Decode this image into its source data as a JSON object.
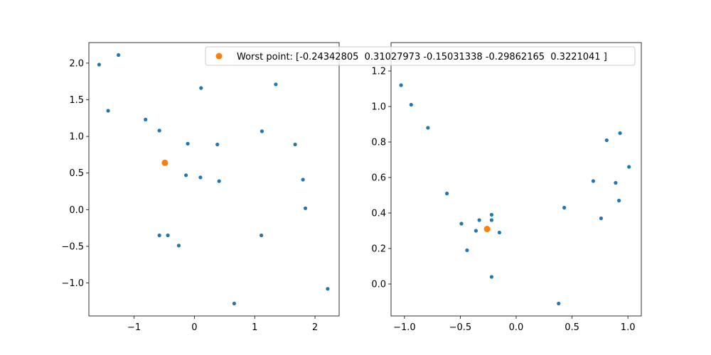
{
  "chart_data": [
    {
      "type": "scatter",
      "xlim": [
        -1.75,
        2.4
      ],
      "ylim": [
        -1.45,
        2.28
      ],
      "xticks": [
        -1,
        0,
        1,
        2
      ],
      "xtick_labels": [
        "−1",
        "0",
        "1",
        "2"
      ],
      "yticks": [
        -1.0,
        -0.5,
        0.0,
        0.5,
        1.0,
        1.5,
        2.0
      ],
      "ytick_labels": [
        "−1.0",
        "−0.5",
        "0.0",
        "0.5",
        "1.0",
        "1.5",
        "2.0"
      ],
      "series": [
        {
          "color": "#1f77b4",
          "marker_size": "small",
          "points": [
            {
              "x": -1.58,
              "y": 1.98
            },
            {
              "x": -1.26,
              "y": 2.11
            },
            {
              "x": -1.43,
              "y": 1.35
            },
            {
              "x": -0.81,
              "y": 1.23
            },
            {
              "x": -0.58,
              "y": 1.08
            },
            {
              "x": -0.11,
              "y": 0.9
            },
            {
              "x": 0.11,
              "y": 1.66
            },
            {
              "x": 0.38,
              "y": 0.89
            },
            {
              "x": 1.35,
              "y": 1.71
            },
            {
              "x": 1.12,
              "y": 1.07
            },
            {
              "x": 1.67,
              "y": 0.89
            },
            {
              "x": -0.14,
              "y": 0.47
            },
            {
              "x": 0.1,
              "y": 0.44
            },
            {
              "x": 0.41,
              "y": 0.39
            },
            {
              "x": 1.8,
              "y": 0.41
            },
            {
              "x": 1.84,
              "y": 0.02
            },
            {
              "x": -0.58,
              "y": -0.35
            },
            {
              "x": -0.44,
              "y": -0.35
            },
            {
              "x": -0.26,
              "y": -0.49
            },
            {
              "x": 1.11,
              "y": -0.35
            },
            {
              "x": 0.66,
              "y": -1.28
            },
            {
              "x": 2.21,
              "y": -1.08
            }
          ]
        },
        {
          "name": "Worst point: [-0.24342805  0.31027973 -0.15031338 -0.29862165  0.3221041 ]",
          "color": "#ff7f0e",
          "marker_size": "large",
          "points": [
            {
              "x": -0.49,
              "y": 0.64
            }
          ]
        }
      ]
    },
    {
      "type": "scatter",
      "xlim": [
        -1.12,
        1.12
      ],
      "ylim": [
        -0.18,
        1.36
      ],
      "xticks": [
        -1.0,
        -0.5,
        0.0,
        0.5,
        1.0
      ],
      "xtick_labels": [
        "−1.0",
        "−0.5",
        "0.0",
        "0.5",
        "1.0"
      ],
      "yticks": [
        0.0,
        0.2,
        0.4,
        0.6,
        0.8,
        1.0,
        1.2
      ],
      "ytick_labels": [
        "0.0",
        "0.2",
        "0.4",
        "0.6",
        "0.8",
        "1.0",
        "1.2"
      ],
      "series": [
        {
          "color": "#1f77b4",
          "marker_size": "small",
          "points": [
            {
              "x": -1.03,
              "y": 1.12
            },
            {
              "x": -0.94,
              "y": 1.01
            },
            {
              "x": -0.79,
              "y": 0.88
            },
            {
              "x": -0.62,
              "y": 0.51
            },
            {
              "x": -0.49,
              "y": 0.34
            },
            {
              "x": -0.44,
              "y": 0.19
            },
            {
              "x": -0.36,
              "y": 0.3
            },
            {
              "x": -0.33,
              "y": 0.36
            },
            {
              "x": -0.22,
              "y": 0.39
            },
            {
              "x": -0.22,
              "y": 0.36
            },
            {
              "x": -0.15,
              "y": 0.29
            },
            {
              "x": -0.22,
              "y": 0.04
            },
            {
              "x": 0.38,
              "y": -0.11
            },
            {
              "x": 0.43,
              "y": 0.43
            },
            {
              "x": 0.69,
              "y": 0.58
            },
            {
              "x": 0.76,
              "y": 0.37
            },
            {
              "x": 0.81,
              "y": 0.81
            },
            {
              "x": 0.89,
              "y": 0.57
            },
            {
              "x": 0.93,
              "y": 0.85
            },
            {
              "x": 0.92,
              "y": 0.47
            },
            {
              "x": 1.01,
              "y": 0.66
            }
          ]
        },
        {
          "name": "Worst point: [-0.24342805  0.31027973 -0.15031338 -0.29862165  0.3221041 ]",
          "color": "#ff7f0e",
          "marker_size": "large",
          "points": [
            {
              "x": -0.26,
              "y": 0.31
            }
          ]
        }
      ]
    }
  ],
  "legend": {
    "location": "top-right of left plot",
    "label": "Worst point: [-0.24342805  0.31027973 -0.15031338 -0.29862165  0.3221041 ]",
    "marker_color": "#ff7f0e"
  }
}
